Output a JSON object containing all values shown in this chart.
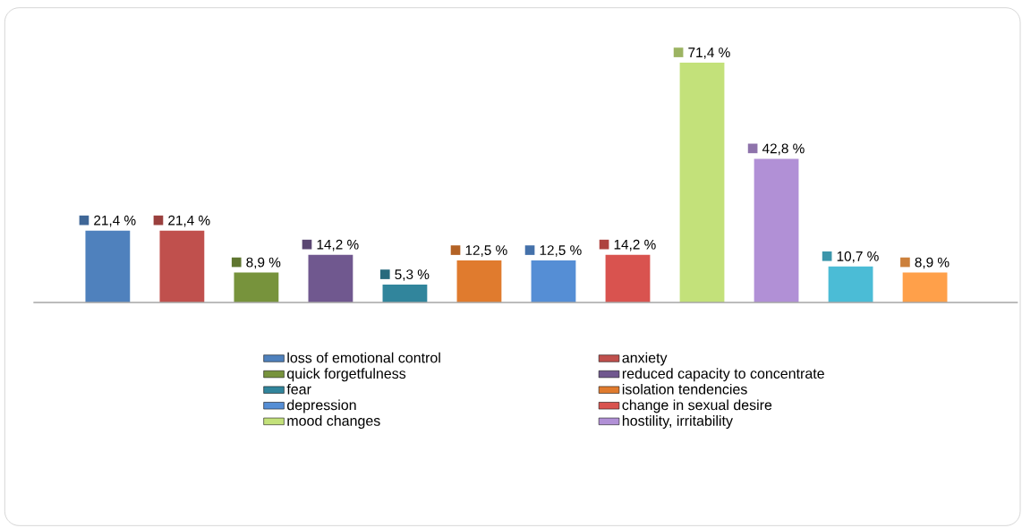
{
  "chart_data": {
    "type": "bar",
    "categories": [
      null,
      null,
      null,
      null,
      null,
      null,
      null,
      null,
      null,
      null,
      null,
      null
    ],
    "series": [
      {
        "name": "loss of emotional control",
        "color": "#4f81bd",
        "values": [
          21.4,
          null,
          null,
          null,
          null,
          null,
          null,
          null,
          null,
          null,
          null,
          null
        ],
        "value_labels": [
          "21,4 %",
          null,
          null,
          null,
          null,
          null,
          null,
          null,
          null,
          null,
          null,
          null
        ]
      },
      {
        "name": "anxiety",
        "color": "#c0504d",
        "values": [
          null,
          21.4,
          null,
          null,
          null,
          null,
          null,
          null,
          null,
          null,
          null,
          null
        ],
        "value_labels": [
          null,
          "21,4 %",
          null,
          null,
          null,
          null,
          null,
          null,
          null,
          null,
          null,
          null
        ]
      },
      {
        "name": "quick forgetfulness",
        "color": "#77933c",
        "values": [
          null,
          null,
          8.9,
          null,
          null,
          null,
          null,
          null,
          null,
          null,
          null,
          null
        ],
        "value_labels": [
          null,
          null,
          "8,9 %",
          null,
          null,
          null,
          null,
          null,
          null,
          null,
          null,
          null
        ]
      },
      {
        "name": "reduced capacity to concentrate",
        "color": "#70588f",
        "values": [
          null,
          null,
          null,
          14.2,
          null,
          null,
          null,
          null,
          null,
          null,
          null,
          null
        ],
        "value_labels": [
          null,
          null,
          null,
          "14,2 %",
          null,
          null,
          null,
          null,
          null,
          null,
          null,
          null
        ]
      },
      {
        "name": "fear",
        "color": "#31859c",
        "values": [
          null,
          null,
          null,
          null,
          5.3,
          null,
          null,
          null,
          null,
          null,
          null,
          null
        ],
        "value_labels": [
          null,
          null,
          null,
          null,
          "5,3 %",
          null,
          null,
          null,
          null,
          null,
          null,
          null
        ]
      },
      {
        "name": "isolation tendencies",
        "color": "#e07b2e",
        "values": [
          null,
          null,
          null,
          null,
          null,
          12.5,
          null,
          null,
          null,
          null,
          null,
          null
        ],
        "value_labels": [
          null,
          null,
          null,
          null,
          null,
          "12,5 %",
          null,
          null,
          null,
          null,
          null,
          null
        ]
      },
      {
        "name": "depression",
        "color": "#558ed5",
        "values": [
          null,
          null,
          null,
          null,
          null,
          null,
          12.5,
          null,
          null,
          null,
          null,
          null
        ],
        "value_labels": [
          null,
          null,
          null,
          null,
          null,
          null,
          "12,5 %",
          null,
          null,
          null,
          null,
          null
        ]
      },
      {
        "name": "change in sexual desire",
        "color": "#d9534f",
        "values": [
          null,
          null,
          null,
          null,
          null,
          null,
          null,
          14.2,
          null,
          null,
          null,
          null
        ],
        "value_labels": [
          null,
          null,
          null,
          null,
          null,
          null,
          null,
          "14,2 %",
          null,
          null,
          null,
          null
        ]
      },
      {
        "name": "mood changes",
        "color": "#c3e17a",
        "values": [
          null,
          null,
          null,
          null,
          null,
          null,
          null,
          null,
          71.4,
          null,
          null,
          null
        ],
        "value_labels": [
          null,
          null,
          null,
          null,
          null,
          null,
          null,
          null,
          "71,4 %",
          null,
          null,
          null
        ]
      },
      {
        "name": "hostility, irritability",
        "color": "#b190d6",
        "values": [
          null,
          null,
          null,
          null,
          null,
          null,
          null,
          null,
          null,
          42.8,
          null,
          null
        ],
        "value_labels": [
          null,
          null,
          null,
          null,
          null,
          null,
          null,
          null,
          null,
          "42,8 %",
          null,
          null
        ]
      },
      {
        "color": "#4bbcd6",
        "values": [
          null,
          null,
          null,
          null,
          null,
          null,
          null,
          null,
          null,
          null,
          10.7,
          null
        ],
        "value_labels": [
          null,
          null,
          null,
          null,
          null,
          null,
          null,
          null,
          null,
          null,
          "10,7 %",
          null
        ]
      },
      {
        "color": "#ffa04a",
        "values": [
          null,
          null,
          null,
          null,
          null,
          null,
          null,
          null,
          null,
          null,
          null,
          8.9
        ],
        "value_labels": [
          null,
          null,
          null,
          null,
          null,
          null,
          null,
          null,
          null,
          null,
          null,
          "8,9 %"
        ]
      }
    ],
    "stacked": true,
    "legend": "bottom"
  }
}
